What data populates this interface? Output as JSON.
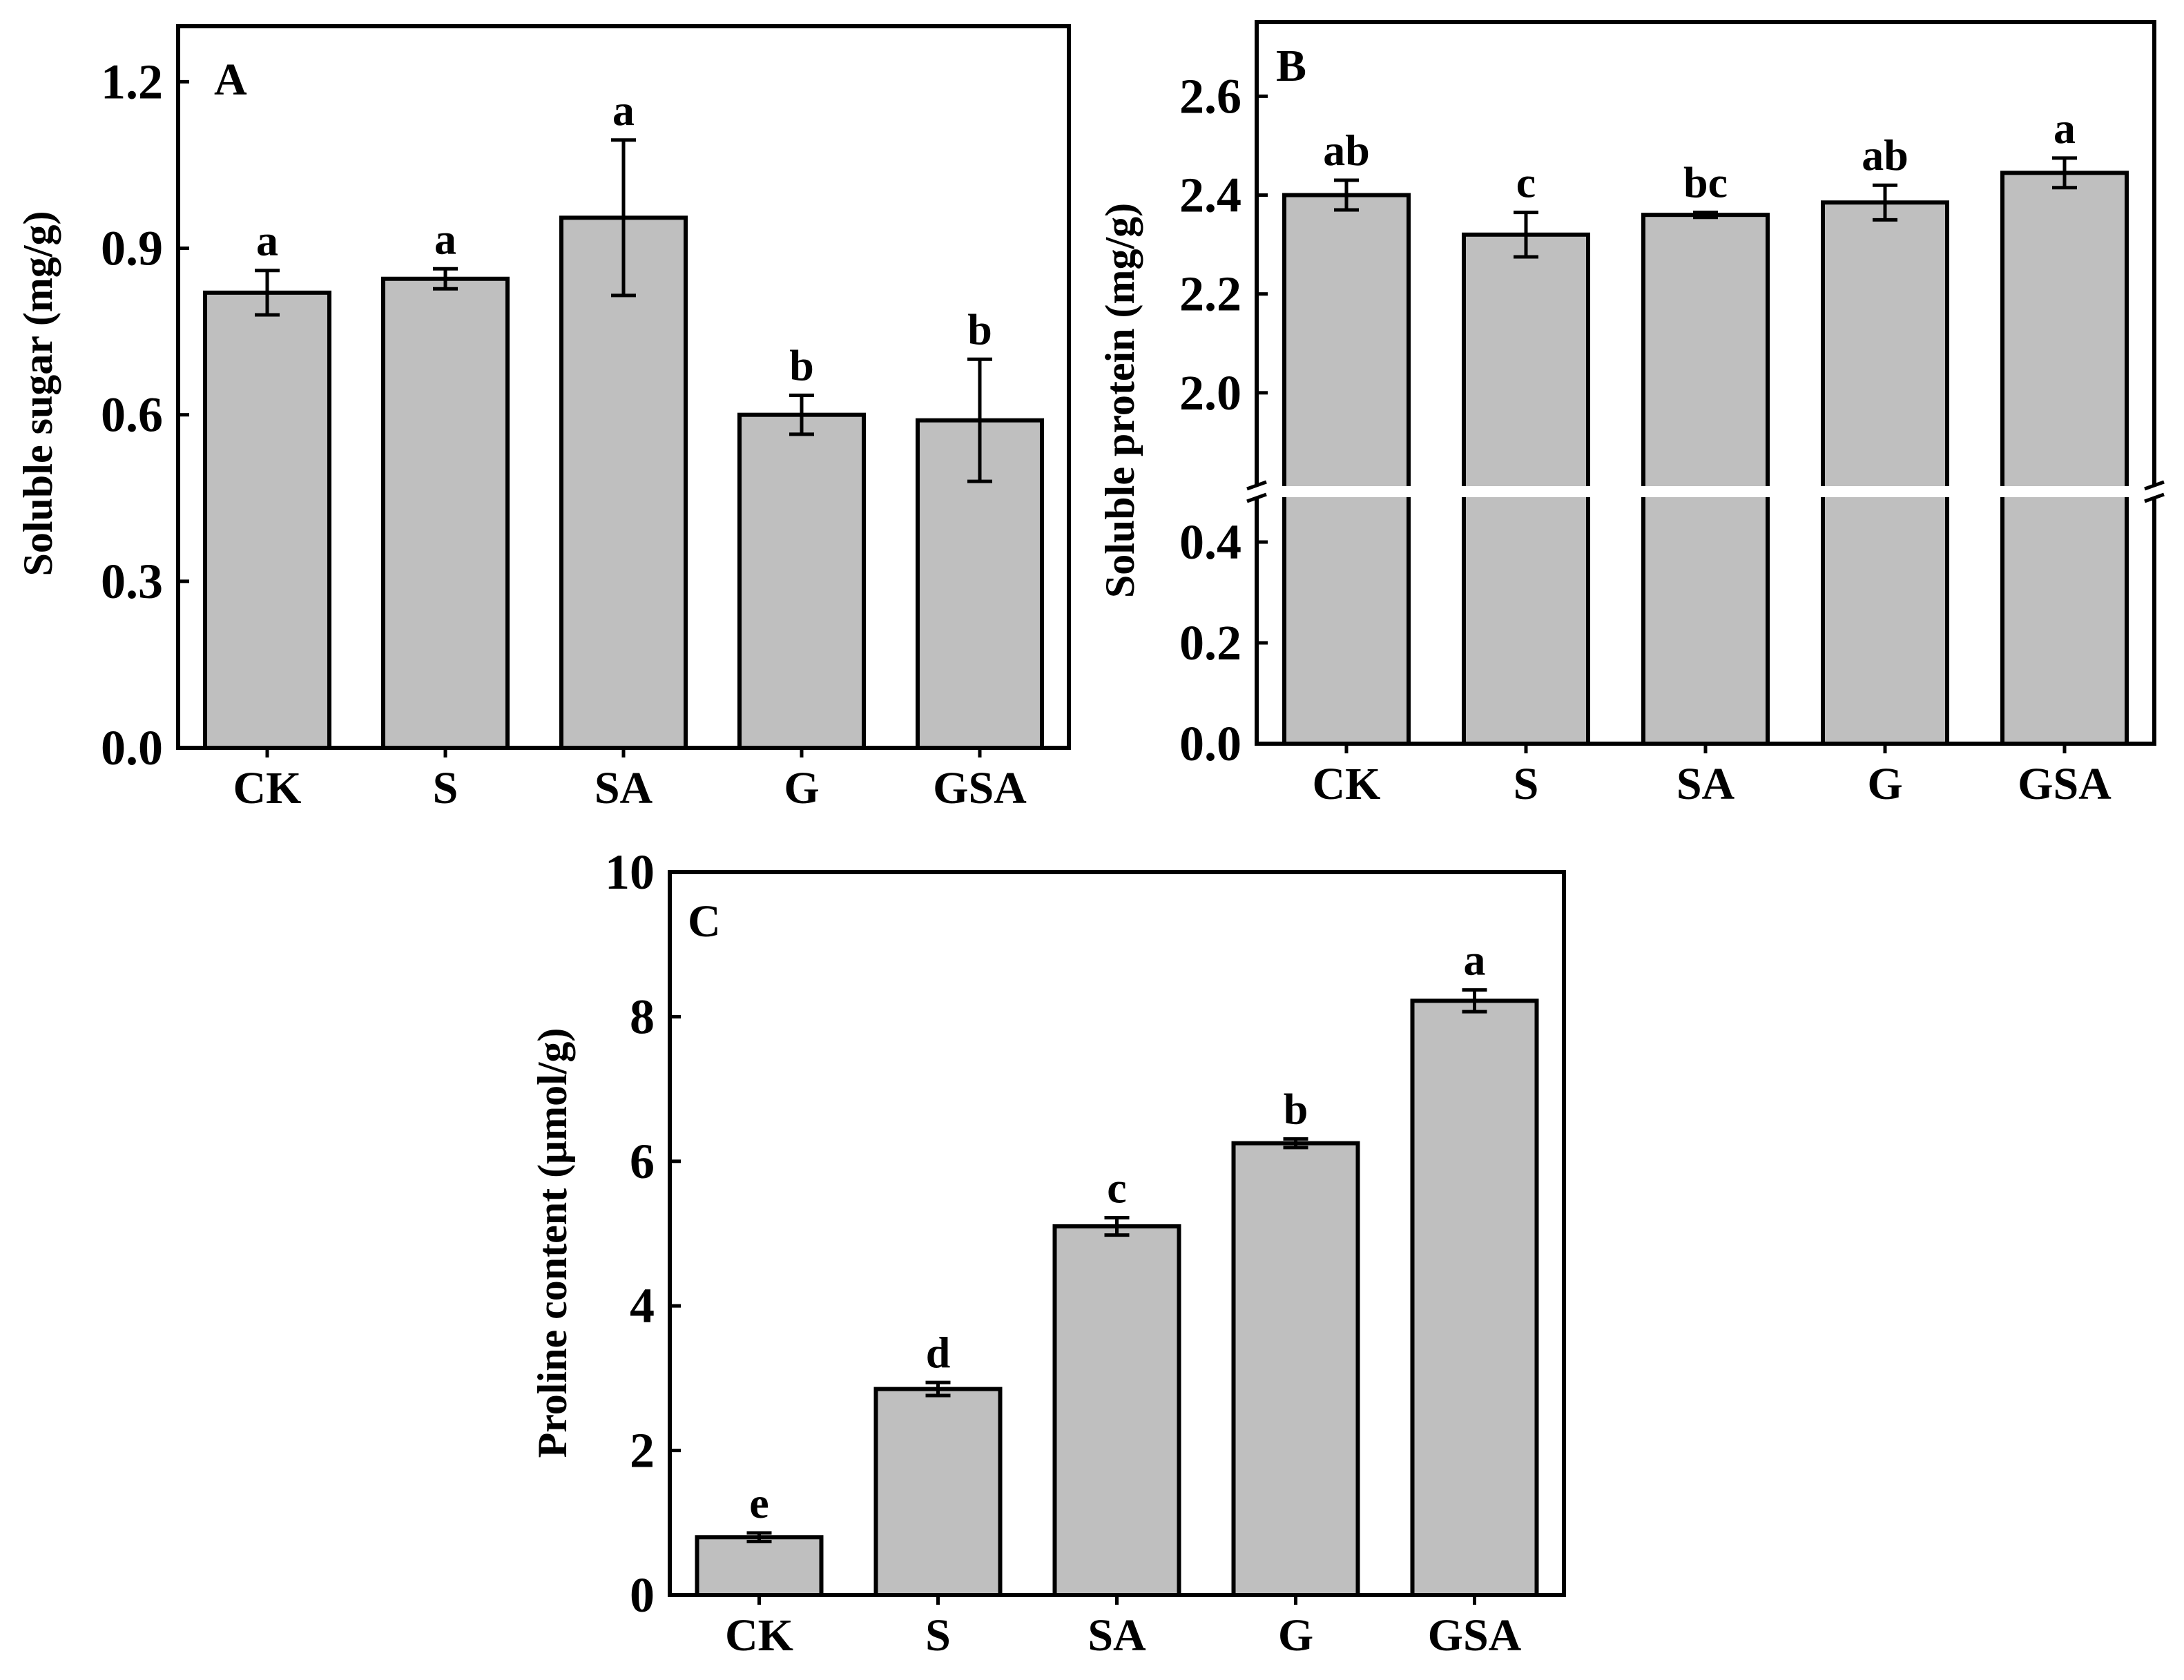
{
  "chart_data": [
    {
      "panel": "A",
      "type": "bar",
      "ylabel": "Soluble sugar (mg/g)",
      "categories": [
        "CK",
        "S",
        "SA",
        "G",
        "GSA"
      ],
      "values": [
        0.82,
        0.845,
        0.955,
        0.6,
        0.59
      ],
      "errors": [
        0.04,
        0.018,
        0.14,
        0.035,
        0.11
      ],
      "significance": [
        "a",
        "a",
        "a",
        "b",
        "b"
      ],
      "ylim": [
        0,
        1.3
      ],
      "yticks": [
        0.0,
        0.3,
        0.6,
        0.9,
        1.2
      ],
      "ytick_labels": [
        "0.0",
        "0.3",
        "0.6",
        "0.9",
        "1.2"
      ]
    },
    {
      "panel": "B",
      "type": "bar",
      "ylabel": "Soluble protein (mg/g)",
      "categories": [
        "CK",
        "S",
        "SA",
        "G",
        "GSA"
      ],
      "values": [
        2.4,
        2.32,
        2.36,
        2.385,
        2.445
      ],
      "errors": [
        0.03,
        0.045,
        0.005,
        0.035,
        0.03
      ],
      "significance": [
        "ab",
        "c",
        "bc",
        "ab",
        "a"
      ],
      "axis_break": {
        "lower_range": [
          0,
          0.5
        ],
        "upper_range": [
          1.8,
          2.75
        ]
      },
      "yticks": [
        0.0,
        0.2,
        0.4,
        2.0,
        2.2,
        2.4,
        2.6
      ],
      "ytick_labels": [
        "0.0",
        "0.2",
        "0.4",
        "2.0",
        "2.2",
        "2.4",
        "2.6"
      ]
    },
    {
      "panel": "C",
      "type": "bar",
      "ylabel": "Proline content (μmol/g)",
      "categories": [
        "CK",
        "S",
        "SA",
        "G",
        "GSA"
      ],
      "values": [
        0.8,
        2.85,
        5.1,
        6.25,
        8.22
      ],
      "errors": [
        0.06,
        0.09,
        0.12,
        0.06,
        0.15
      ],
      "significance": [
        "e",
        "d",
        "c",
        "b",
        "a"
      ],
      "ylim": [
        0,
        10
      ],
      "yticks": [
        0,
        2,
        4,
        6,
        8,
        10
      ],
      "ytick_labels": [
        "0",
        "2",
        "4",
        "6",
        "8",
        "10"
      ]
    }
  ]
}
